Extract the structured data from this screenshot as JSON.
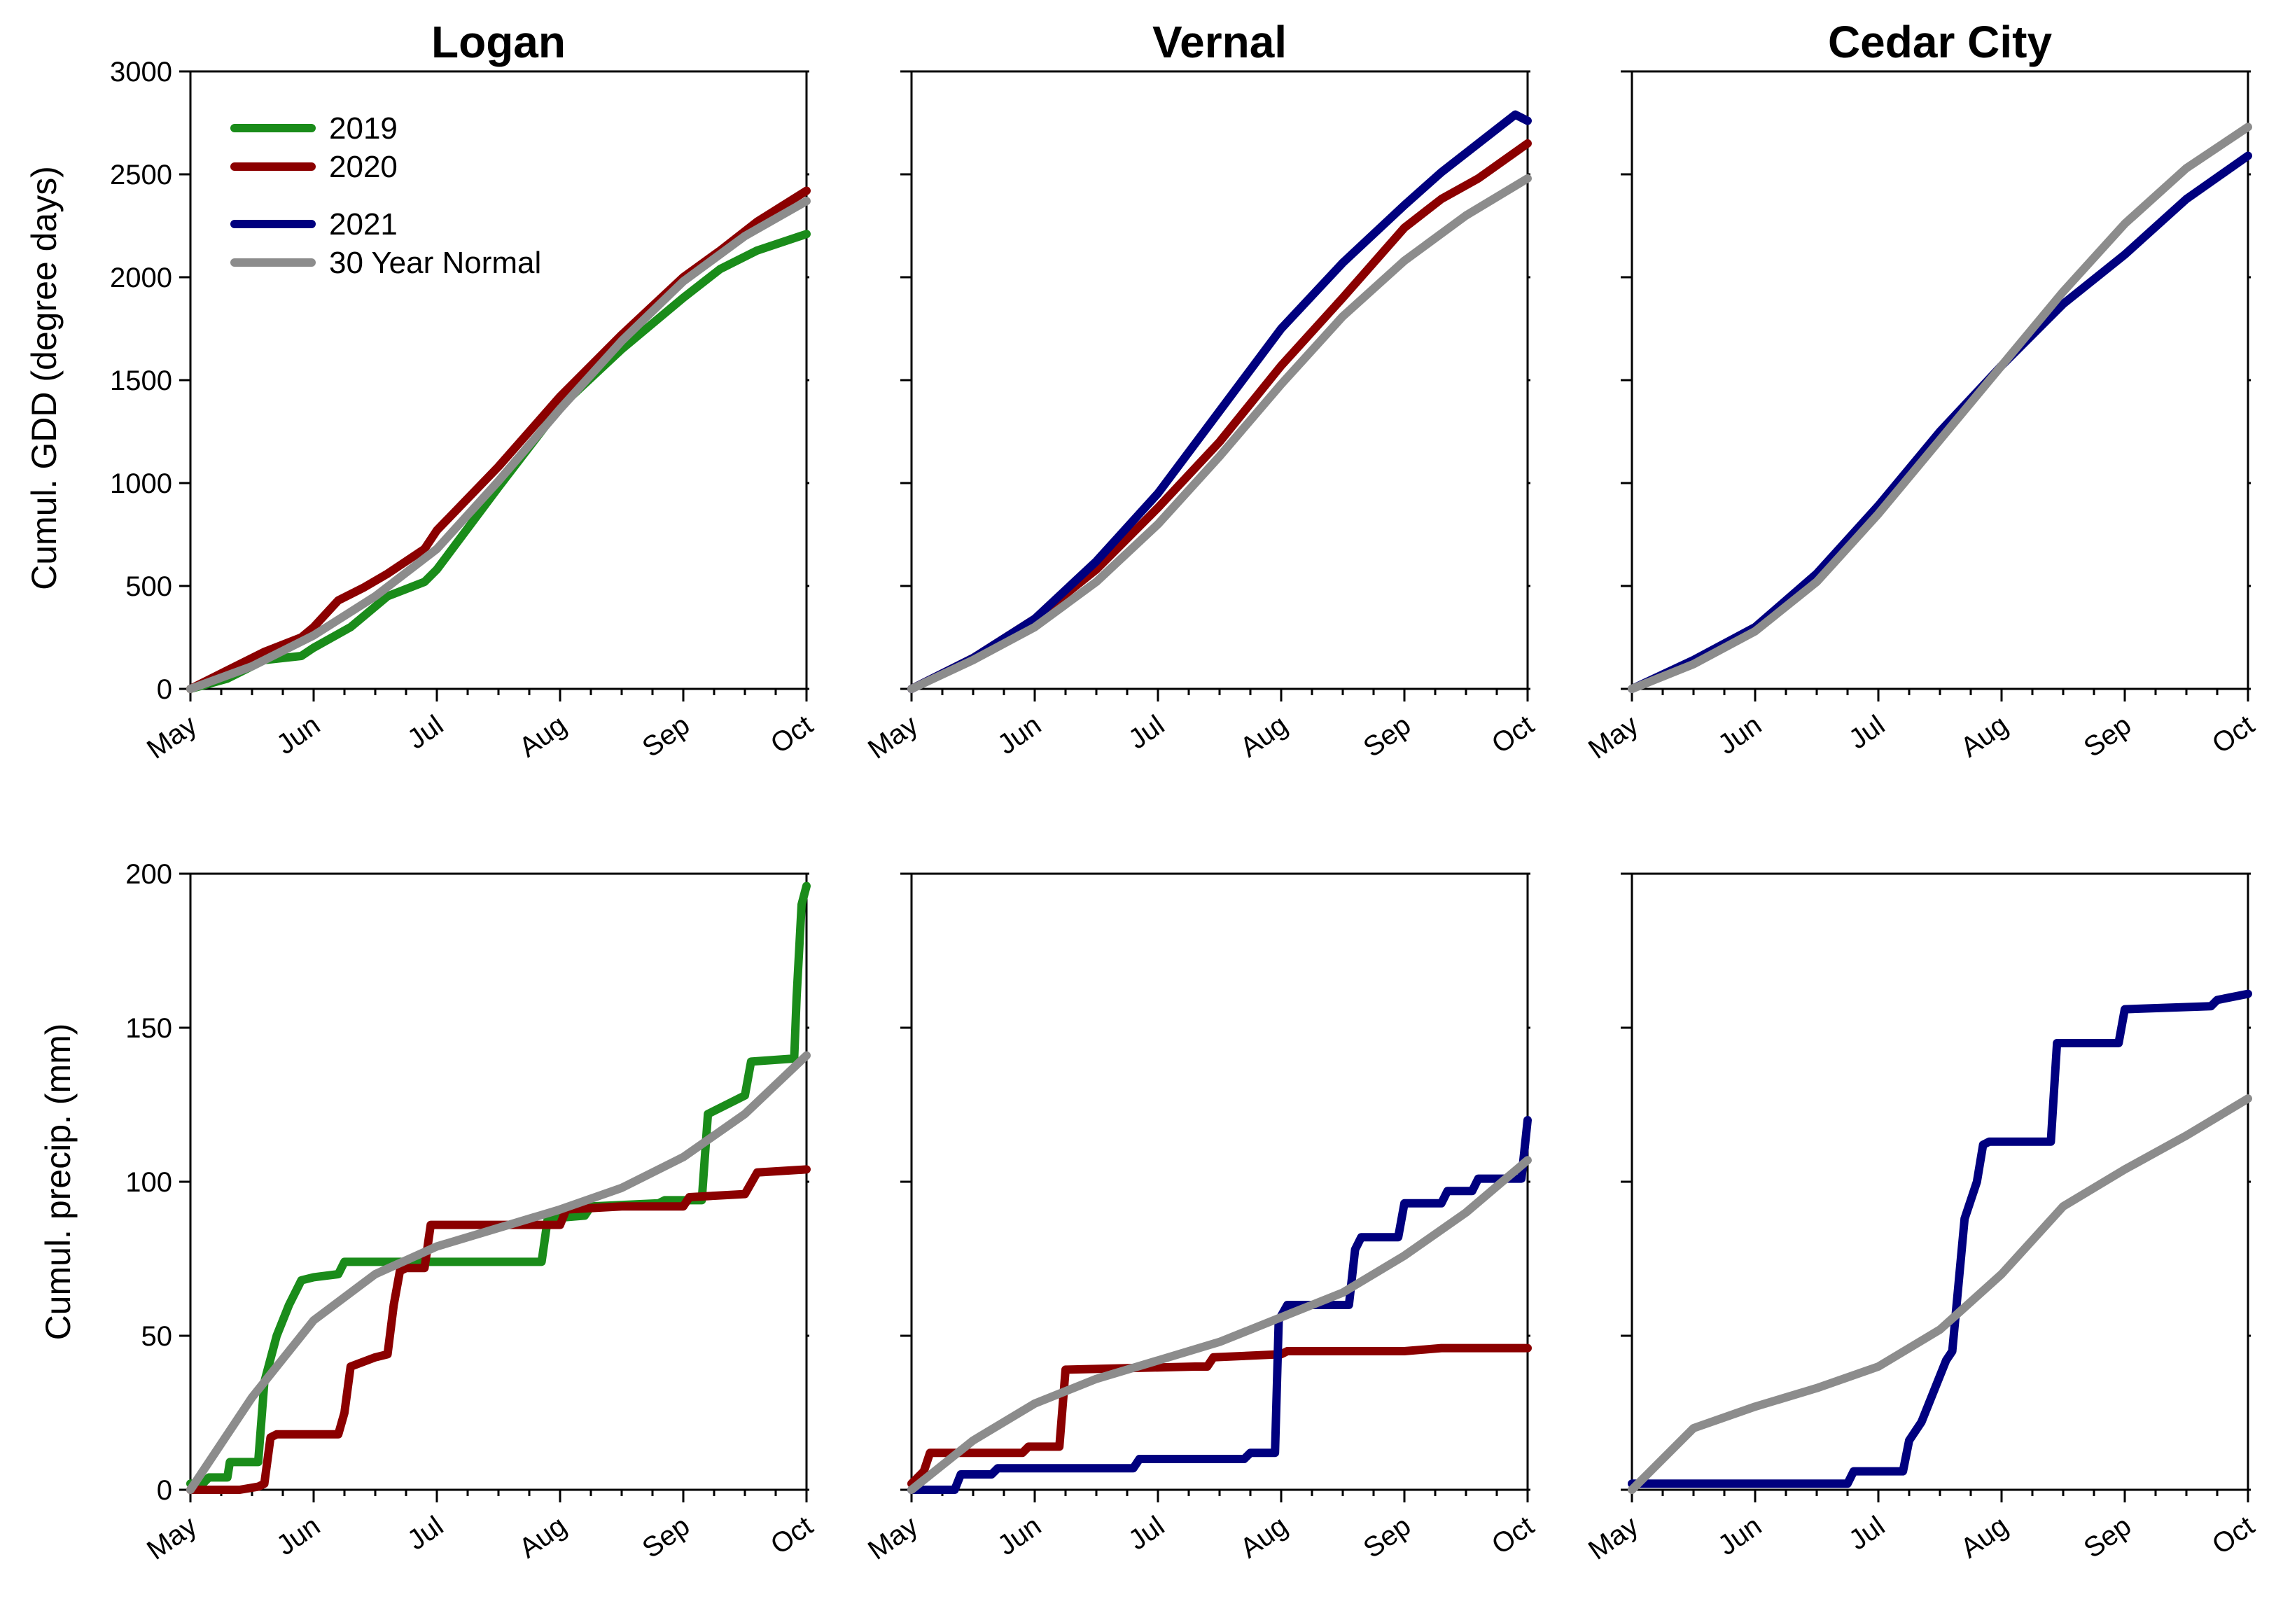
{
  "legend": [
    {
      "label": "2019",
      "color": "#1a8c1a"
    },
    {
      "label": "2020",
      "color": "#8b0000"
    },
    {
      "label": "2021",
      "color": "#00007f"
    },
    {
      "label": "30 Year Normal",
      "color": "#8c8c8c"
    }
  ],
  "chart_data": [
    {
      "id": "logan-gdd",
      "type": "line",
      "title": "Logan",
      "xlabel": "",
      "ylabel": "Cumul. GDD (degree days)",
      "x_ticks": [
        "May",
        "Jun",
        "Jul",
        "Aug",
        "Sep",
        "Oct"
      ],
      "ylim": [
        0,
        3000
      ],
      "y_ticks": [
        "0",
        "500",
        "1000",
        "1500",
        "2000",
        "2500",
        "3000"
      ],
      "series": [
        {
          "name": "2019",
          "color": "#1a8c1a",
          "x": [
            0,
            0.3,
            0.6,
            0.9,
            1.0,
            1.3,
            1.6,
            1.9,
            2.0,
            2.5,
            3.0,
            3.5,
            4.0,
            4.3,
            4.6,
            5.0
          ],
          "y": [
            0,
            50,
            140,
            160,
            200,
            300,
            450,
            520,
            580,
            980,
            1370,
            1650,
            1900,
            2040,
            2130,
            2210
          ]
        },
        {
          "name": "2020",
          "color": "#8b0000",
          "x": [
            0,
            0.3,
            0.6,
            0.9,
            1.0,
            1.2,
            1.4,
            1.6,
            1.9,
            2.0,
            2.5,
            3.0,
            3.5,
            4.0,
            4.3,
            4.6,
            5.0
          ],
          "y": [
            0,
            90,
            180,
            250,
            300,
            430,
            490,
            560,
            680,
            770,
            1080,
            1420,
            1720,
            2000,
            2130,
            2270,
            2420
          ]
        },
        {
          "name": "30 Year Normal",
          "color": "#8c8c8c",
          "x": [
            0,
            0.5,
            1.0,
            1.5,
            2.0,
            2.5,
            3.0,
            3.5,
            4.0,
            4.5,
            5.0
          ],
          "y": [
            0,
            110,
            260,
            450,
            680,
            1010,
            1360,
            1690,
            1980,
            2200,
            2370
          ]
        }
      ]
    },
    {
      "id": "vernal-gdd",
      "type": "line",
      "title": "Vernal",
      "xlabel": "",
      "ylabel": "",
      "x_ticks": [
        "May",
        "Jun",
        "Jul",
        "Aug",
        "Sep",
        "Oct"
      ],
      "ylim": [
        0,
        3000
      ],
      "series": [
        {
          "name": "2020",
          "color": "#8b0000",
          "x": [
            0,
            0.5,
            1.0,
            1.5,
            2.0,
            2.5,
            3.0,
            3.5,
            4.0,
            4.3,
            4.6,
            5.0
          ],
          "y": [
            0,
            150,
            340,
            580,
            880,
            1200,
            1570,
            1900,
            2240,
            2380,
            2480,
            2650
          ]
        },
        {
          "name": "2021",
          "color": "#00007f",
          "x": [
            0,
            0.5,
            1.0,
            1.5,
            2.0,
            2.5,
            3.0,
            3.5,
            4.0,
            4.3,
            4.6,
            4.9,
            5.0
          ],
          "y": [
            0,
            150,
            340,
            620,
            950,
            1350,
            1750,
            2070,
            2350,
            2510,
            2650,
            2790,
            2760
          ]
        },
        {
          "name": "30 Year Normal",
          "color": "#8c8c8c",
          "x": [
            0,
            0.5,
            1.0,
            1.5,
            2.0,
            2.5,
            3.0,
            3.5,
            4.0,
            4.5,
            5.0
          ],
          "y": [
            0,
            140,
            300,
            520,
            800,
            1130,
            1480,
            1810,
            2080,
            2300,
            2480
          ]
        }
      ]
    },
    {
      "id": "cedar-gdd",
      "type": "line",
      "title": "Cedar City",
      "xlabel": "",
      "ylabel": "",
      "x_ticks": [
        "May",
        "Jun",
        "Jul",
        "Aug",
        "Sep",
        "Oct"
      ],
      "ylim": [
        0,
        3000
      ],
      "series": [
        {
          "name": "2021",
          "color": "#00007f",
          "x": [
            0,
            0.5,
            1.0,
            1.5,
            2.0,
            2.5,
            3.0,
            3.5,
            4.0,
            4.5,
            5.0
          ],
          "y": [
            0,
            140,
            300,
            560,
            890,
            1250,
            1570,
            1870,
            2110,
            2380,
            2590
          ]
        },
        {
          "name": "30 Year Normal",
          "color": "#8c8c8c",
          "x": [
            0,
            0.5,
            1.0,
            1.5,
            2.0,
            2.5,
            3.0,
            3.5,
            4.0,
            4.5,
            5.0
          ],
          "y": [
            0,
            120,
            280,
            520,
            850,
            1210,
            1570,
            1930,
            2260,
            2530,
            2730
          ]
        }
      ]
    },
    {
      "id": "logan-precip",
      "type": "line",
      "title": "",
      "xlabel": "",
      "ylabel": "Cumul. precip. (mm)",
      "x_ticks": [
        "May",
        "Jun",
        "Jul",
        "Aug",
        "Sep",
        "Oct"
      ],
      "ylim": [
        0,
        200
      ],
      "y_ticks": [
        "0",
        "50",
        "100",
        "150",
        "200"
      ],
      "series": [
        {
          "name": "2019",
          "color": "#1a8c1a",
          "x": [
            0,
            0.1,
            0.15,
            0.3,
            0.32,
            0.55,
            0.6,
            0.7,
            0.8,
            0.9,
            1.0,
            1.2,
            1.25,
            1.6,
            1.7,
            2.0,
            2.5,
            2.85,
            2.9,
            3.2,
            3.25,
            3.8,
            3.85,
            4.15,
            4.2,
            4.5,
            4.55,
            4.9,
            4.92,
            4.96,
            5.0
          ],
          "y": [
            2,
            2,
            4,
            4,
            9,
            9,
            35,
            50,
            60,
            68,
            69,
            70,
            74,
            74,
            74,
            74,
            74,
            74,
            88,
            89,
            92,
            93,
            94,
            94,
            122,
            128,
            139,
            140,
            160,
            190,
            196
          ]
        },
        {
          "name": "2020",
          "color": "#8b0000",
          "x": [
            0,
            0.3,
            0.4,
            0.55,
            0.6,
            0.65,
            0.7,
            1.2,
            1.25,
            1.3,
            1.5,
            1.6,
            1.65,
            1.7,
            1.75,
            1.9,
            1.95,
            2.0,
            2.5,
            3.0,
            3.05,
            3.5,
            4.0,
            4.05,
            4.5,
            4.6,
            5.0
          ],
          "y": [
            0,
            0,
            0,
            1,
            2,
            17,
            18,
            18,
            25,
            40,
            43,
            44,
            60,
            71,
            72,
            72,
            86,
            86,
            86,
            86,
            91,
            92,
            92,
            95,
            96,
            103,
            104
          ]
        },
        {
          "name": "30 Year Normal",
          "color": "#8c8c8c",
          "x": [
            0,
            0.5,
            1.0,
            1.5,
            2.0,
            2.5,
            3.0,
            3.5,
            4.0,
            4.5,
            5.0
          ],
          "y": [
            0,
            30,
            55,
            70,
            79,
            85,
            91,
            98,
            108,
            122,
            141
          ]
        }
      ]
    },
    {
      "id": "vernal-precip",
      "type": "line",
      "title": "",
      "xlabel": "",
      "ylabel": "",
      "x_ticks": [
        "May",
        "Jun",
        "Jul",
        "Aug",
        "Sep",
        "Oct"
      ],
      "ylim": [
        0,
        200
      ],
      "series": [
        {
          "name": "2020",
          "color": "#8b0000",
          "x": [
            0,
            0.1,
            0.15,
            0.9,
            0.95,
            1.2,
            1.25,
            2.3,
            2.4,
            2.45,
            3.0,
            3.05,
            4.0,
            4.3,
            5.0
          ],
          "y": [
            2,
            6,
            12,
            12,
            14,
            14,
            39,
            40,
            40,
            43,
            44,
            45,
            45,
            46,
            46
          ]
        },
        {
          "name": "2021",
          "color": "#00007f",
          "x": [
            0,
            0.35,
            0.4,
            0.65,
            0.7,
            1.8,
            1.85,
            2.7,
            2.75,
            2.95,
            2.98,
            3.05,
            3.55,
            3.6,
            3.65,
            3.95,
            4.0,
            4.3,
            4.35,
            4.55,
            4.6,
            4.95,
            5.0
          ],
          "y": [
            0,
            0,
            5,
            5,
            7,
            7,
            10,
            10,
            12,
            12,
            55,
            60,
            60,
            78,
            82,
            82,
            93,
            93,
            97,
            97,
            101,
            101,
            120
          ]
        },
        {
          "name": "30 Year Normal",
          "color": "#8c8c8c",
          "x": [
            0,
            0.5,
            1.0,
            1.5,
            2.0,
            2.5,
            3.0,
            3.5,
            4.0,
            4.5,
            5.0
          ],
          "y": [
            0,
            16,
            28,
            36,
            42,
            48,
            56,
            64,
            76,
            90,
            107
          ]
        }
      ]
    },
    {
      "id": "cedar-precip",
      "type": "line",
      "title": "",
      "xlabel": "",
      "ylabel": "",
      "x_ticks": [
        "May",
        "Jun",
        "Jul",
        "Aug",
        "Sep",
        "Oct"
      ],
      "ylim": [
        0,
        200
      ],
      "series": [
        {
          "name": "2021",
          "color": "#00007f",
          "x": [
            0,
            1.5,
            1.75,
            1.8,
            2.2,
            2.25,
            2.35,
            2.45,
            2.55,
            2.6,
            2.7,
            2.8,
            2.85,
            2.9,
            3.4,
            3.45,
            3.95,
            4.0,
            4.7,
            4.75,
            5.0
          ],
          "y": [
            2,
            2,
            2,
            6,
            6,
            16,
            22,
            32,
            42,
            45,
            88,
            100,
            112,
            113,
            113,
            145,
            145,
            156,
            157,
            159,
            161
          ]
        },
        {
          "name": "30 Year Normal",
          "color": "#8c8c8c",
          "x": [
            0,
            0.5,
            1.0,
            1.5,
            2.0,
            2.5,
            3.0,
            3.5,
            4.0,
            4.5,
            5.0
          ],
          "y": [
            0,
            20,
            27,
            33,
            40,
            52,
            70,
            92,
            104,
            115,
            127
          ]
        }
      ]
    }
  ]
}
